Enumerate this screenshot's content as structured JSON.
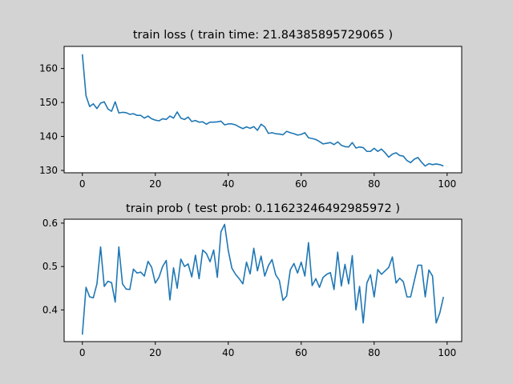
{
  "chart_data": [
    {
      "type": "line",
      "title": "train loss ( train time: 21.84385895729065 )",
      "xlabel": "",
      "ylabel": "",
      "xlim": [
        -5,
        104
      ],
      "ylim": [
        129.3,
        166.5
      ],
      "xticks": [
        0,
        20,
        40,
        60,
        80,
        100
      ],
      "yticks": [
        130,
        140,
        150,
        160
      ],
      "grid": false,
      "color": "#1f77b4",
      "x_start": 0,
      "x_step": 1,
      "values": [
        164.2,
        152.0,
        148.8,
        149.6,
        148.2,
        149.8,
        150.2,
        148.1,
        147.4,
        150.2,
        146.9,
        147.1,
        147.0,
        146.5,
        146.7,
        146.2,
        146.2,
        145.4,
        146.0,
        145.2,
        144.8,
        144.6,
        145.2,
        145.0,
        146.0,
        145.4,
        147.2,
        145.4,
        145.0,
        145.7,
        144.4,
        144.7,
        144.2,
        144.3,
        143.6,
        144.2,
        144.2,
        144.3,
        144.5,
        143.4,
        143.7,
        143.7,
        143.4,
        142.8,
        142.3,
        142.8,
        142.4,
        142.9,
        141.8,
        143.6,
        142.8,
        140.9,
        141.1,
        140.8,
        140.7,
        140.5,
        141.5,
        141.1,
        140.8,
        140.4,
        140.6,
        141.1,
        139.6,
        139.4,
        139.1,
        138.5,
        137.8,
        138.0,
        138.2,
        137.6,
        138.4,
        137.4,
        137.0,
        136.9,
        138.2,
        136.6,
        136.9,
        136.7,
        135.6,
        135.6,
        136.5,
        135.6,
        136.3,
        135.2,
        133.9,
        134.8,
        135.2,
        134.4,
        134.2,
        132.9,
        132.3,
        133.3,
        133.8,
        132.4,
        131.3,
        132.0,
        131.7,
        131.9,
        131.7,
        131.3
      ]
    },
    {
      "type": "line",
      "title": "train prob ( test prob: 0.11623246492985972 )",
      "xlabel": "",
      "ylabel": "",
      "xlim": [
        -5,
        104
      ],
      "ylim": [
        0.327,
        0.609
      ],
      "xticks": [
        0,
        20,
        40,
        60,
        80,
        100
      ],
      "yticks": [
        0.4,
        0.5,
        0.6
      ],
      "ytick_labels": [
        "0.4",
        "0.5",
        "0.6"
      ],
      "grid": false,
      "color": "#1f77b4",
      "x_start": 0,
      "x_step": 1,
      "values": [
        0.343,
        0.452,
        0.43,
        0.428,
        0.46,
        0.545,
        0.454,
        0.466,
        0.463,
        0.418,
        0.545,
        0.46,
        0.448,
        0.447,
        0.494,
        0.485,
        0.487,
        0.478,
        0.512,
        0.498,
        0.462,
        0.475,
        0.5,
        0.514,
        0.423,
        0.497,
        0.45,
        0.517,
        0.5,
        0.506,
        0.476,
        0.526,
        0.472,
        0.538,
        0.53,
        0.511,
        0.538,
        0.475,
        0.58,
        0.597,
        0.537,
        0.496,
        0.482,
        0.472,
        0.46,
        0.51,
        0.483,
        0.542,
        0.49,
        0.524,
        0.478,
        0.502,
        0.516,
        0.481,
        0.468,
        0.422,
        0.432,
        0.492,
        0.507,
        0.485,
        0.51,
        0.478,
        0.555,
        0.456,
        0.472,
        0.452,
        0.475,
        0.482,
        0.486,
        0.447,
        0.533,
        0.455,
        0.505,
        0.46,
        0.525,
        0.4,
        0.454,
        0.37,
        0.462,
        0.481,
        0.43,
        0.493,
        0.482,
        0.49,
        0.498,
        0.522,
        0.462,
        0.473,
        0.465,
        0.43,
        0.43,
        0.467,
        0.503,
        0.503,
        0.43,
        0.492,
        0.478,
        0.37,
        0.393,
        0.43
      ]
    }
  ]
}
